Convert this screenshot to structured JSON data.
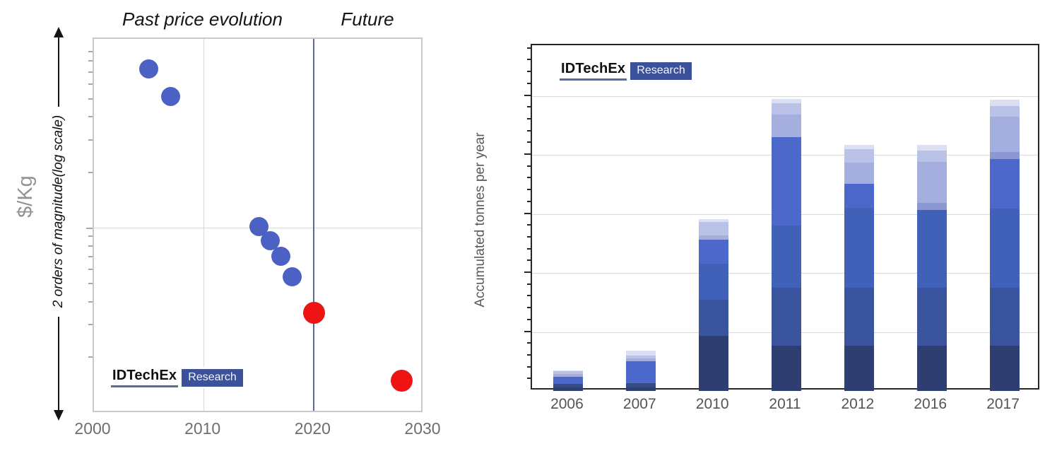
{
  "logo": {
    "brand": "IDTechEx",
    "suffix": "Research"
  },
  "left_chart": {
    "title_past": "Past price evolution",
    "title_future": "Future",
    "y_axis_unit": "$/Kg",
    "y_axis_note": "2 orders of magnitude(log scale)",
    "x_ticks": [
      "2000",
      "2010",
      "2020",
      "2030"
    ],
    "divider_year": 2020
  },
  "right_chart": {
    "y_axis_label": "Accumulated tonnes per year",
    "x_ticks": [
      "2006",
      "2007",
      "2010",
      "2011",
      "2012",
      "2016",
      "2017"
    ]
  },
  "colors": {
    "blue_dot": "#4c61c4",
    "red_dot": "#ee1414",
    "divider_line": "#5a6a94",
    "gridline": "#d9d9d9",
    "left_box_border": "#c9c9c9",
    "right_box_border": "#262626",
    "logo_box_blue": "#3b5199",
    "logo_underline": "#5a6b9e",
    "bar_palette": {
      "darkest": "#2f3e71",
      "dark": "#384a82",
      "mediumDark": "#3a549e",
      "medium": "#4160b8",
      "bright": "#4b68ca",
      "blueGray2": "#8b98d4",
      "blueGray": "#a4afdf",
      "lavender": "#bac2e8",
      "veryLight": "#dbdff3"
    }
  },
  "chart_data": [
    {
      "type": "scatter",
      "title": "Past price evolution | Future",
      "x_range": [
        2000,
        2030
      ],
      "x_ticks": [
        "2000",
        "2010",
        "2020",
        "2030"
      ],
      "y_scale": "log",
      "y_range": [
        1,
        100
      ],
      "y_unit": "$/Kg",
      "y_note": "2 orders of magnitude(log scale)",
      "divider_x": 2020,
      "gridlines": {
        "vertical_x": [
          2010
        ],
        "horizontal_y": [
          10
        ]
      },
      "legend_position": "none",
      "series": [
        {
          "name": "Past price evolution",
          "color_key": "blue_dot",
          "marker_radius_px": 13.5,
          "points": [
            {
              "x": 2005,
              "y": 73
            },
            {
              "x": 2007,
              "y": 52
            },
            {
              "x": 2015,
              "y": 10.3
            },
            {
              "x": 2016,
              "y": 8.6
            },
            {
              "x": 2017,
              "y": 7.1
            },
            {
              "x": 2018,
              "y": 5.5
            }
          ]
        },
        {
          "name": "Future",
          "color_key": "red_dot",
          "marker_radius_px": 15.5,
          "points": [
            {
              "x": 2020,
              "y": 3.5
            },
            {
              "x": 2028,
              "y": 1.5
            }
          ]
        }
      ],
      "note": "y values are relative $/Kg levels estimated from the unlabeled 2-orders-of-magnitude log axis (bottom=1, top=100)"
    },
    {
      "type": "bar",
      "stacked": true,
      "categories": [
        "2006",
        "2007",
        "2010",
        "2011",
        "2012",
        "2016",
        "2017"
      ],
      "xlabel": "",
      "ylabel": "Accumulated tonnes per year",
      "ylim": [
        0,
        5.86
      ],
      "grid": "horizontal, every 1 unit (unlabeled axis)",
      "legend_position": "none",
      "units_note": "values in gridline units; no numeric y tick labels are visible in the image",
      "totals": [
        0.35,
        0.68,
        2.91,
        4.95,
        4.17,
        4.17,
        4.94
      ],
      "bars": [
        {
          "category": "2006",
          "segments": [
            {
              "color": "darkest",
              "value": 0.06
            },
            {
              "color": "dark",
              "value": 0.06
            },
            {
              "color": "bright",
              "value": 0.12
            },
            {
              "color": "blueGray",
              "value": 0.05
            },
            {
              "color": "lavender",
              "value": 0.04
            },
            {
              "color": "veryLight",
              "value": 0.02
            }
          ]
        },
        {
          "category": "2007",
          "segments": [
            {
              "color": "darkest",
              "value": 0.06
            },
            {
              "color": "dark",
              "value": 0.07
            },
            {
              "color": "bright",
              "value": 0.37
            },
            {
              "color": "blueGray",
              "value": 0.05
            },
            {
              "color": "lavender",
              "value": 0.05
            },
            {
              "color": "veryLight",
              "value": 0.08
            }
          ]
        },
        {
          "category": "2010",
          "segments": [
            {
              "color": "darkest",
              "value": 0.93
            },
            {
              "color": "mediumDark",
              "value": 0.62
            },
            {
              "color": "medium",
              "value": 0.61
            },
            {
              "color": "bright",
              "value": 0.4
            },
            {
              "color": "blueGray",
              "value": 0.07
            },
            {
              "color": "lavender",
              "value": 0.23
            },
            {
              "color": "veryLight",
              "value": 0.05
            }
          ]
        },
        {
          "category": "2011",
          "segments": [
            {
              "color": "darkest",
              "value": 0.77
            },
            {
              "color": "mediumDark",
              "value": 0.98
            },
            {
              "color": "medium",
              "value": 1.05
            },
            {
              "color": "bright",
              "value": 1.5
            },
            {
              "color": "blueGray",
              "value": 0.38
            },
            {
              "color": "lavender",
              "value": 0.2
            },
            {
              "color": "veryLight",
              "value": 0.07
            }
          ]
        },
        {
          "category": "2012",
          "segments": [
            {
              "color": "darkest",
              "value": 0.77
            },
            {
              "color": "mediumDark",
              "value": 0.98
            },
            {
              "color": "medium",
              "value": 1.35
            },
            {
              "color": "bright",
              "value": 0.41
            },
            {
              "color": "blueGray",
              "value": 0.36
            },
            {
              "color": "lavender",
              "value": 0.22
            },
            {
              "color": "veryLight",
              "value": 0.08
            }
          ]
        },
        {
          "category": "2016",
          "segments": [
            {
              "color": "darkest",
              "value": 0.77
            },
            {
              "color": "mediumDark",
              "value": 0.98
            },
            {
              "color": "medium",
              "value": 1.32
            },
            {
              "color": "blueGray2",
              "value": 0.12
            },
            {
              "color": "blueGray",
              "value": 0.69
            },
            {
              "color": "lavender",
              "value": 0.19
            },
            {
              "color": "veryLight",
              "value": 0.1
            }
          ]
        },
        {
          "category": "2017",
          "segments": [
            {
              "color": "darkest",
              "value": 0.77
            },
            {
              "color": "mediumDark",
              "value": 0.98
            },
            {
              "color": "medium",
              "value": 1.34
            },
            {
              "color": "bright",
              "value": 0.84
            },
            {
              "color": "blueGray2",
              "value": 0.12
            },
            {
              "color": "blueGray",
              "value": 0.6
            },
            {
              "color": "lavender",
              "value": 0.18
            },
            {
              "color": "veryLight",
              "value": 0.11
            }
          ]
        }
      ]
    }
  ]
}
